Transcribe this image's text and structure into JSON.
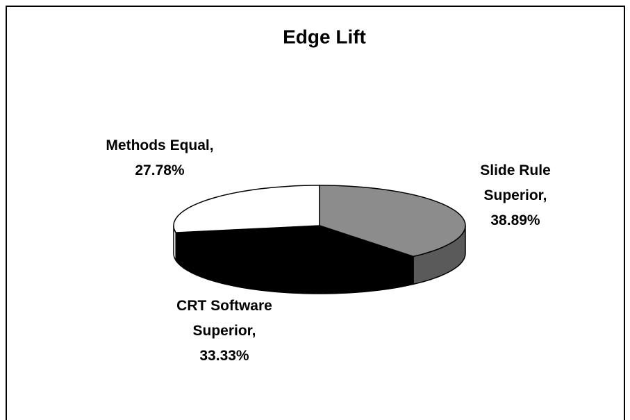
{
  "chart_data": {
    "type": "pie",
    "title": "Edge Lift",
    "categories": [
      "Slide Rule Superior,",
      "CRT Software Superior,",
      "Methods Equal,"
    ],
    "values": [
      38.89,
      33.33,
      27.78
    ],
    "value_labels": [
      "38.89%",
      "33.33%",
      "27.78%"
    ],
    "colors": [
      "#8c8c8c",
      "#000000",
      "#ffffff"
    ]
  }
}
